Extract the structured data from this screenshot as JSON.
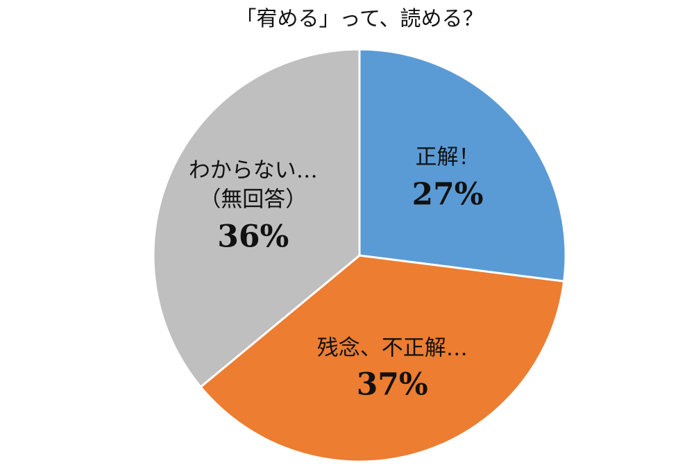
{
  "chart_data": {
    "type": "pie",
    "title": "「宥める」って、読める？",
    "categories": [
      "正解！",
      "残念、不正解…",
      "わからない…\n（無回答）"
    ],
    "values": [
      27,
      37,
      36
    ],
    "value_labels": [
      "27%",
      "37%",
      "36%"
    ],
    "colors": [
      "#5b9bd5",
      "#ed7d31",
      "#bfbfbf"
    ]
  }
}
